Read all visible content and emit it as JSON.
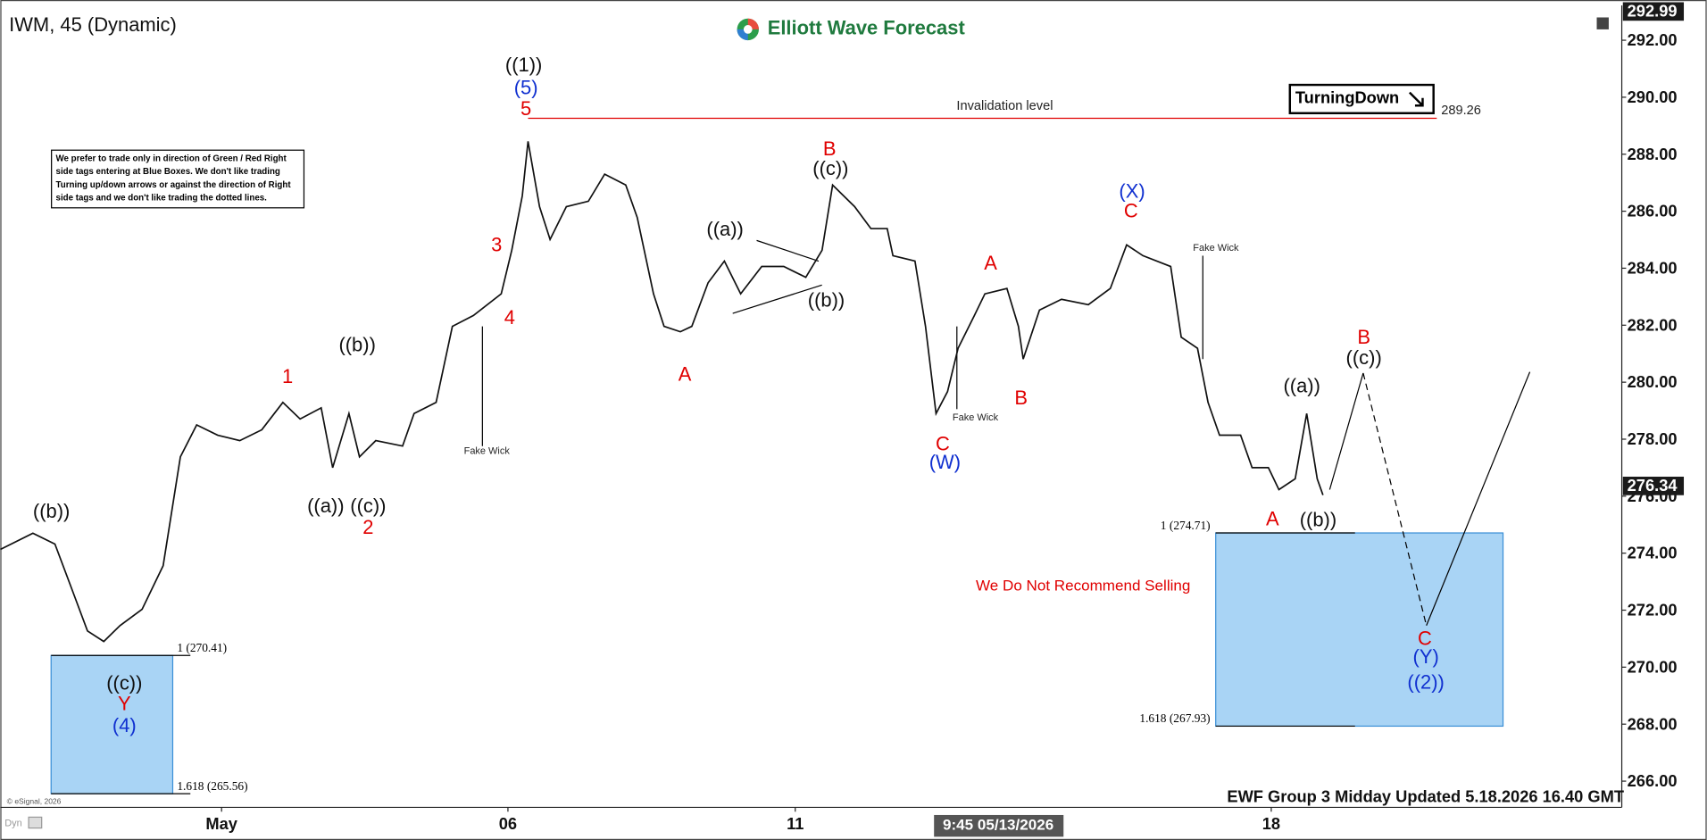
{
  "chart_data": {
    "type": "line",
    "title": "IWM, 45 (Dynamic)",
    "logo": "Elliott Wave Forecast",
    "tag": "TurningDown",
    "note": [
      "We prefer to trade only in direction of Green / Red Right",
      "side tags entering at Blue Boxes. We don't like trading",
      "Turning up/down arrows or against the direction of Right",
      "side tags and we don't like trading the dotted lines."
    ],
    "warning": "We Do Not Recommend Selling",
    "footer": "EWF Group 3 Midday Updated 5.18.2026 16.40 GMT",
    "crosshair_label": "9:45 05/13/2026",
    "copyright": "© eSignal, 2026",
    "corner": "Dyn",
    "x": [
      0,
      0.34,
      0.57,
      0.74,
      0.91,
      1.08,
      1.25,
      1.48,
      1.7,
      1.88,
      2.05,
      2.27,
      2.5,
      2.73,
      2.95,
      3.13,
      3.35,
      3.47,
      3.64,
      3.75,
      3.92,
      4.2,
      4.32,
      4.55,
      4.72,
      4.94,
      5.23,
      5.34,
      5.45,
      5.51,
      5.63,
      5.74,
      5.91,
      6.14,
      6.31,
      6.53,
      6.65,
      6.82,
      6.93,
      7.1,
      7.22,
      7.39,
      7.56,
      7.73,
      7.95,
      8.18,
      8.41,
      8.58,
      8.69,
      8.92,
      9.09,
      9.26,
      9.32,
      9.55,
      9.66,
      9.77,
      9.89,
      10.0,
      10.17,
      10.28,
      10.51,
      10.63,
      10.68,
      10.85,
      11.08,
      11.36,
      11.59,
      11.76,
      11.93,
      12.22,
      12.33,
      12.5,
      12.61,
      12.73,
      12.95,
      13.07,
      13.24,
      13.35,
      13.52,
      13.64,
      13.75,
      13.81
    ],
    "series": [
      {
        "name": "IWM",
        "color": "#111111",
        "values": [
          274.13,
          274.7,
          274.32,
          272.8,
          271.27,
          270.9,
          271.46,
          272.03,
          273.56,
          277.38,
          278.5,
          278.14,
          277.95,
          278.33,
          279.29,
          278.71,
          279.1,
          277.0,
          278.9,
          277.38,
          277.95,
          277.76,
          278.9,
          279.29,
          281.96,
          282.34,
          283.1,
          284.63,
          286.54,
          288.45,
          286.16,
          285.01,
          286.16,
          286.35,
          287.3,
          286.92,
          285.78,
          283.1,
          281.96,
          281.77,
          281.96,
          283.49,
          284.25,
          283.1,
          284.06,
          284.06,
          283.68,
          284.63,
          286.92,
          286.16,
          285.39,
          285.39,
          284.44,
          284.25,
          281.96,
          278.9,
          279.67,
          281.19,
          282.34,
          283.1,
          283.29,
          281.96,
          280.81,
          282.53,
          282.91,
          282.72,
          283.29,
          284.82,
          284.44,
          284.06,
          281.58,
          281.19,
          279.29,
          278.14,
          278.14,
          277.0,
          277.0,
          276.23,
          276.61,
          278.9,
          276.61,
          276.04
        ]
      }
    ],
    "projection": {
      "x": [
        13.88,
        14.23,
        14.89,
        15.97
      ],
      "values": [
        276.23,
        280.32,
        271.46,
        280.36
      ]
    },
    "xlim": [
      0,
      16.93
    ],
    "xticks": [
      {
        "value": 2.31,
        "label": "May"
      },
      {
        "value": 5.3,
        "label": "06"
      },
      {
        "value": 8.3,
        "label": "11"
      },
      {
        "value": 13.27,
        "label": "18"
      }
    ],
    "ylim": [
      265.08,
      293.03
    ],
    "yticks": [
      {
        "value": 266,
        "label": "266.00"
      },
      {
        "value": 268,
        "label": "268.00"
      },
      {
        "value": 270,
        "label": "270.00"
      },
      {
        "value": 272,
        "label": "272.00"
      },
      {
        "value": 274,
        "label": "274.00"
      },
      {
        "value": 276,
        "label": "276.00"
      },
      {
        "value": 278,
        "label": "278.00"
      },
      {
        "value": 280,
        "label": "280.00"
      },
      {
        "value": 282,
        "label": "282.00"
      },
      {
        "value": 284,
        "label": "284.00"
      },
      {
        "value": 286,
        "label": "286.00"
      },
      {
        "value": 288,
        "label": "288.00"
      },
      {
        "value": 290,
        "label": "290.00"
      },
      {
        "value": 292,
        "label": "292.00"
      }
    ],
    "high_label": {
      "value": 292.99,
      "label": "292.99"
    },
    "last_price": {
      "value": 276.34,
      "label": "276.34"
    },
    "invalidation": {
      "value": 289.26,
      "label": "289.26",
      "text": "Invalidation level",
      "color": "#e00000"
    },
    "boxes": [
      {
        "top": 270.41,
        "bottom": 265.56,
        "x0": 0.53,
        "x1": 1.8,
        "top_label": "1 (270.41)",
        "bottom_label": "1.618 (265.56)"
      },
      {
        "top": 274.71,
        "bottom": 267.93,
        "x0": 12.69,
        "x1": 15.69,
        "top_label": "1 (274.71)",
        "bottom_label": "1.618 (267.93)"
      }
    ],
    "box_color": "#a9d4f5",
    "annotations": [
      "((b))",
      "((c))",
      "Y",
      "(4)",
      "1",
      "((b))",
      "((a))",
      "((c))",
      "2",
      "3",
      "4",
      "((1))",
      "(5)",
      "5",
      "A",
      "((a))",
      "((b))",
      "B",
      "((c))",
      "A",
      "B",
      "C",
      "(W)",
      "(X)",
      "C",
      "((a))",
      "A",
      "((b))",
      "B",
      "((c))",
      "C",
      "(Y)",
      "((2))",
      "Fake Wick",
      "Fake Wick",
      "Fake Wick"
    ]
  }
}
